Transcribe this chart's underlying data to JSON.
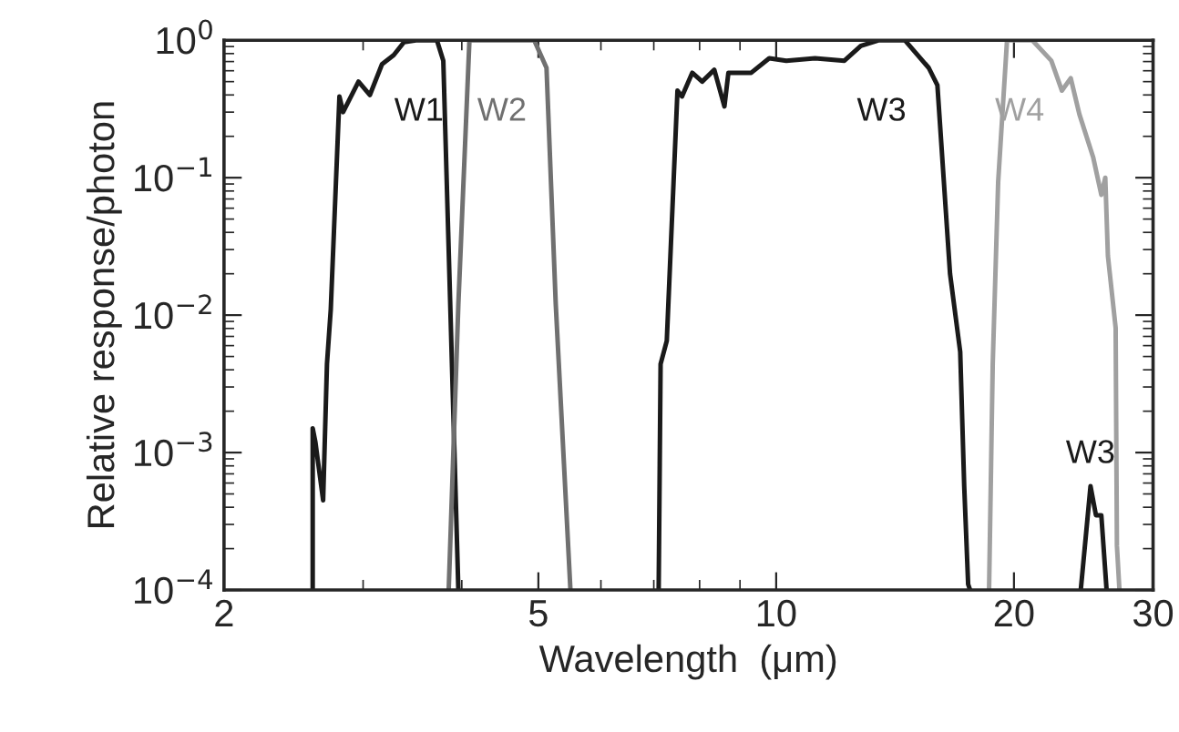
{
  "chart_data": {
    "type": "line",
    "xlabel": "Wavelength  (μm)",
    "ylabel": "Relative response/photon",
    "log": "xy",
    "xlim": [
      2,
      30
    ],
    "ylim": [
      0.0001,
      1
    ],
    "xticks": [
      2,
      5,
      10,
      20,
      30
    ],
    "yticks": [
      {
        "value": 0.0001,
        "label": "10$^{−4}$"
      },
      {
        "value": 0.001,
        "label": "10$^{−3}$"
      },
      {
        "value": 0.01,
        "label": "10$^{−2}$"
      },
      {
        "value": 0.1,
        "label": "10$^{−1}$"
      },
      {
        "value": 1,
        "label": "10$^{0}$"
      }
    ],
    "grid": false,
    "marker": "none",
    "line_style": "solid",
    "series": [
      {
        "name": "W1",
        "color": "#1a1a1a",
        "x": [
          2.59,
          2.59,
          2.61,
          2.67,
          2.7,
          2.73,
          2.8,
          2.83,
          2.96,
          3.06,
          3.17,
          3.28,
          3.38,
          3.5,
          3.72,
          3.79,
          3.96
        ],
        "values": [
          0.0001,
          0.0015,
          0.0012,
          0.00045,
          0.0044,
          0.011,
          0.39,
          0.3,
          0.5,
          0.4,
          0.67,
          0.78,
          0.97,
          1,
          1,
          0.71,
          0.0001
        ]
      },
      {
        "name": "W2",
        "color": "#707070",
        "x": [
          3.85,
          3.96,
          4.09,
          4.5,
          4.94,
          5.12,
          5.26,
          5.49
        ],
        "values": [
          0.0001,
          0.012,
          1,
          1,
          1,
          0.63,
          0.012,
          0.0001
        ]
      },
      {
        "name": "W3",
        "color": "#1a1a1a",
        "x": [
          7.1,
          7.14,
          7.27,
          7.5,
          7.6,
          7.83,
          8.06,
          8.35,
          8.6,
          8.7,
          9.3,
          9.8,
          10.3,
          11.2,
          12.2,
          12.8,
          13.5,
          14.55,
          15.6,
          16.0,
          16.6,
          17.1,
          17.3,
          17.5,
          17.6
        ],
        "values": [
          0.0001,
          0.0044,
          0.0065,
          0.43,
          0.39,
          0.58,
          0.5,
          0.61,
          0.33,
          0.58,
          0.58,
          0.74,
          0.71,
          0.74,
          0.71,
          0.91,
          1,
          1,
          0.63,
          0.47,
          0.02,
          0.0054,
          0.00057,
          0.00011,
          0.0001
        ]
      },
      {
        "name": "W3",
        "color": "#1a1a1a",
        "x": [
          24.3,
          25.0,
          25.4,
          25.8,
          26.2
        ],
        "values": [
          0.0001,
          0.00057,
          0.00035,
          0.00035,
          0.0001
        ]
      },
      {
        "name": "W4",
        "color": "#a0a0a0",
        "x": [
          18.6,
          18.8,
          19.1,
          19.6,
          21.1,
          22.3,
          23.0,
          23.6,
          24.2,
          25.2,
          25.8,
          26.1,
          26.3,
          26.9,
          27.0,
          27.2
        ],
        "values": [
          0.0001,
          0.0044,
          0.093,
          1,
          1,
          0.71,
          0.43,
          0.53,
          0.29,
          0.14,
          0.075,
          0.1,
          0.027,
          0.0081,
          0.00021,
          0.0001
        ]
      }
    ]
  }
}
